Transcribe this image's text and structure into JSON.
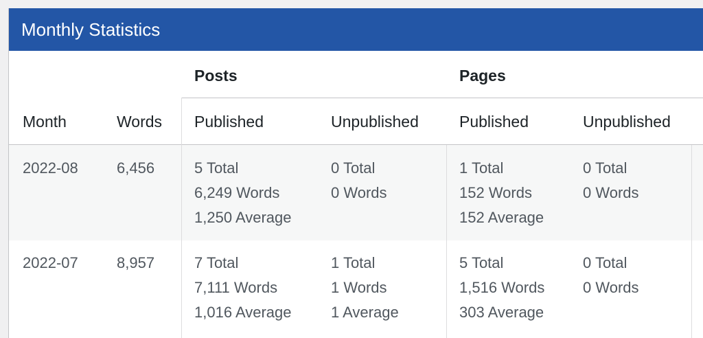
{
  "title": "Monthly Statistics",
  "groups": {
    "posts": "Posts",
    "pages": "Pages"
  },
  "columns": {
    "month": "Month",
    "words": "Words",
    "posts_published": "Published",
    "posts_unpublished": "Unpublished",
    "pages_published": "Published",
    "pages_unpublished": "Unpublished"
  },
  "rows": [
    {
      "month": "2022-08",
      "words": "6,456",
      "posts_published": [
        "5 Total",
        "6,249 Words",
        "1,250 Average"
      ],
      "posts_unpublished": [
        "0 Total",
        "0 Words"
      ],
      "pages_published": [
        "1 Total",
        "152 Words",
        "152 Average"
      ],
      "pages_unpublished": [
        "0 Total",
        "0 Words"
      ]
    },
    {
      "month": "2022-07",
      "words": "8,957",
      "posts_published": [
        "7 Total",
        "7,111 Words",
        "1,016 Average"
      ],
      "posts_unpublished": [
        "1 Total",
        "1 Words",
        "1 Average"
      ],
      "pages_published": [
        "5 Total",
        "1,516 Words",
        "303 Average"
      ],
      "pages_unpublished": [
        "0 Total",
        "0 Words"
      ]
    }
  ]
}
